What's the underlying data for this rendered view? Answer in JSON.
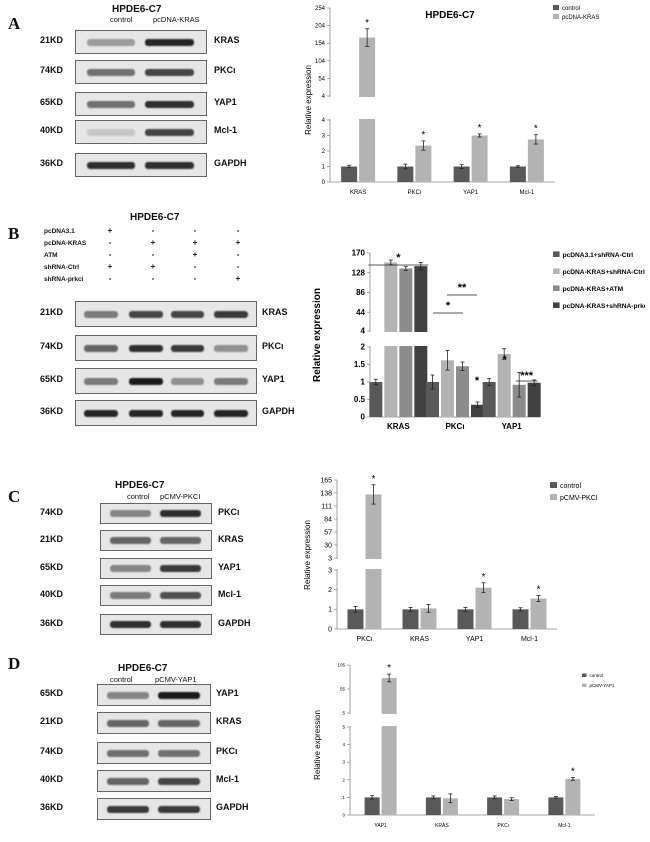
{
  "panels": [
    {
      "letter": "A",
      "blot": {
        "title": "HPDE6-C7",
        "lanes": [
          "control",
          "pcDNA-KRAS"
        ],
        "rows": [
          {
            "kd": "21KD",
            "protein": "KRAS",
            "bands": [
              0.35,
              0.9
            ]
          },
          {
            "kd": "74KD",
            "protein": "PKCι",
            "bands": [
              0.55,
              0.75
            ]
          },
          {
            "kd": "65KD",
            "protein": "YAP1",
            "bands": [
              0.55,
              0.85
            ]
          },
          {
            "kd": "40KD",
            "protein": "Mcl-1",
            "bands": [
              0.15,
              0.75
            ]
          },
          {
            "kd": "36KD",
            "protein": "GAPDH",
            "bands": [
              0.85,
              0.85
            ]
          }
        ]
      }
    },
    {
      "letter": "B",
      "blot": {
        "title": "HPDE6-C7",
        "treatments": [
          {
            "label": "pcDNA3.1",
            "signs": [
              "+",
              "-",
              "-",
              "-"
            ]
          },
          {
            "label": "pcDNA-KRAS",
            "signs": [
              "-",
              "+",
              "+",
              "+"
            ]
          },
          {
            "label": "ATM",
            "signs": [
              "-",
              "-",
              "+",
              "-"
            ]
          },
          {
            "label": "shRNA-Ctrl",
            "signs": [
              "+",
              "+",
              "-",
              "-"
            ]
          },
          {
            "label": "shRNA-prkci",
            "signs": [
              "-",
              "-",
              "-",
              "+"
            ]
          }
        ],
        "rows": [
          {
            "kd": "21KD",
            "protein": "KRAS",
            "bands": [
              0.5,
              0.75,
              0.75,
              0.8
            ]
          },
          {
            "kd": "74KD",
            "protein": "PKCι",
            "bands": [
              0.6,
              0.85,
              0.8,
              0.4
            ]
          },
          {
            "kd": "65KD",
            "protein": "YAP1",
            "bands": [
              0.5,
              0.95,
              0.4,
              0.5
            ]
          },
          {
            "kd": "36KD",
            "protein": "GAPDH",
            "bands": [
              0.9,
              0.9,
              0.9,
              0.9
            ]
          }
        ]
      }
    },
    {
      "letter": "C",
      "blot": {
        "title": "HPDE6-C7",
        "lanes": [
          "control",
          "pCMV-PKCI"
        ],
        "rows": [
          {
            "kd": "74KD",
            "protein": "PKCι",
            "bands": [
              0.45,
              0.85
            ]
          },
          {
            "kd": "21KD",
            "protein": "KRAS",
            "bands": [
              0.6,
              0.6
            ]
          },
          {
            "kd": "65KD",
            "protein": "YAP1",
            "bands": [
              0.45,
              0.8
            ]
          },
          {
            "kd": "40KD",
            "protein": "Mcl-1",
            "bands": [
              0.5,
              0.7
            ]
          },
          {
            "kd": "36KD",
            "protein": "GAPDH",
            "bands": [
              0.85,
              0.85
            ]
          }
        ]
      }
    },
    {
      "letter": "D",
      "blot": {
        "title": "HPDE6-C7",
        "lanes": [
          "control",
          "pCMV-YAP1"
        ],
        "rows": [
          {
            "kd": "65KD",
            "protein": "YAP1",
            "bands": [
              0.45,
              0.95
            ]
          },
          {
            "kd": "21KD",
            "protein": "KRAS",
            "bands": [
              0.6,
              0.6
            ]
          },
          {
            "kd": "74KD",
            "protein": "PKCι",
            "bands": [
              0.55,
              0.55
            ]
          },
          {
            "kd": "40KD",
            "protein": "Mcl-1",
            "bands": [
              0.6,
              0.75
            ]
          },
          {
            "kd": "36KD",
            "protein": "GAPDH",
            "bands": [
              0.8,
              0.8
            ]
          }
        ]
      }
    }
  ],
  "chart_data": [
    {
      "type": "bar",
      "panel": "A",
      "title": "HPDE6-C7",
      "ylabel": "Relative expression",
      "categories": [
        "KRAS",
        "PKCι",
        "YAP1",
        "Mcl-1"
      ],
      "lower_ticks": [
        0,
        1,
        2,
        3,
        4
      ],
      "upper_ticks": [
        4,
        54,
        104,
        154,
        204,
        254
      ],
      "series": [
        {
          "name": "control",
          "color": "#595959",
          "values": [
            1,
            1,
            1,
            1
          ],
          "errors": [
            0.08,
            0.15,
            0.12,
            0.05
          ]
        },
        {
          "name": "pcDNA-KRAS",
          "color": "#b3b3b3",
          "values": [
            170,
            2.35,
            3.0,
            2.75
          ],
          "errors": [
            25,
            0.3,
            0.1,
            0.3
          ]
        }
      ],
      "significance": [
        "*",
        "*",
        "*",
        "*"
      ],
      "legend": "top-right"
    },
    {
      "type": "bar",
      "panel": "B",
      "ylabel": "Relative expression",
      "categories": [
        "KRAS",
        "PKCι",
        "YAP1"
      ],
      "lower_ticks": [
        0,
        0.5,
        1,
        1.5,
        2
      ],
      "upper_ticks": [
        4,
        44,
        86,
        128,
        170
      ],
      "series": [
        {
          "name": "pcDNA3.1+shRNA-Ctrl",
          "color": "#595959",
          "values": [
            1,
            1,
            1
          ],
          "errors": [
            0.08,
            0.2,
            0.1
          ]
        },
        {
          "name": "pcDNA-KRAS+shRNA-Ctrl",
          "color": "#b3b3b3",
          "values": [
            150,
            1.62,
            1.8
          ],
          "errors": [
            5,
            0.28,
            0.15
          ]
        },
        {
          "name": "pcDNA-KRAS+ATM",
          "color": "#8c8c8c",
          "values": [
            137,
            1.45,
            0.92
          ],
          "errors": [
            4,
            0.12,
            0.35
          ]
        },
        {
          "name": "pcDNA-KRAS+shRNA-prkci",
          "color": "#404040",
          "values": [
            142,
            0.35,
            0.98
          ],
          "errors": [
            8,
            0.08,
            0.08
          ]
        }
      ],
      "annotations": [
        "*",
        "*",
        "**",
        "*",
        "*",
        "***"
      ],
      "legend": "top-right"
    },
    {
      "type": "bar",
      "panel": "C",
      "ylabel": "Relative expression",
      "categories": [
        "PKCι",
        "KRAS",
        "YAP1",
        "Mcl-1"
      ],
      "lower_ticks": [
        0,
        1,
        2,
        3
      ],
      "upper_ticks": [
        3,
        30,
        57,
        84,
        111,
        138,
        165
      ],
      "series": [
        {
          "name": "control",
          "color": "#595959",
          "values": [
            1,
            1,
            1,
            1
          ],
          "errors": [
            0.15,
            0.1,
            0.1,
            0.08
          ]
        },
        {
          "name": "pCMV-PKCI",
          "color": "#b3b3b3",
          "values": [
            135,
            1.05,
            2.1,
            1.55
          ],
          "errors": [
            20,
            0.2,
            0.25,
            0.15
          ]
        }
      ],
      "significance": [
        "*",
        "",
        "*",
        "*"
      ],
      "legend": "top-right"
    },
    {
      "type": "bar",
      "panel": "D",
      "ylabel": "Relative expression",
      "categories": [
        "YAP1",
        "KRAS",
        "PKCι",
        "Mcl-1"
      ],
      "lower_ticks": [
        0,
        1,
        2,
        3,
        4,
        5
      ],
      "upper_ticks": [
        5,
        55,
        105
      ],
      "series": [
        {
          "name": "control",
          "color": "#595959",
          "values": [
            1,
            1,
            1,
            1
          ],
          "errors": [
            0.1,
            0.08,
            0.08,
            0.05
          ]
        },
        {
          "name": "pCMV-YAP1",
          "color": "#b3b3b3",
          "values": [
            78,
            0.95,
            0.9,
            2.05
          ],
          "errors": [
            8,
            0.25,
            0.08,
            0.08
          ]
        }
      ],
      "significance": [
        "*",
        "",
        "",
        "*"
      ],
      "legend": "top-right"
    }
  ]
}
